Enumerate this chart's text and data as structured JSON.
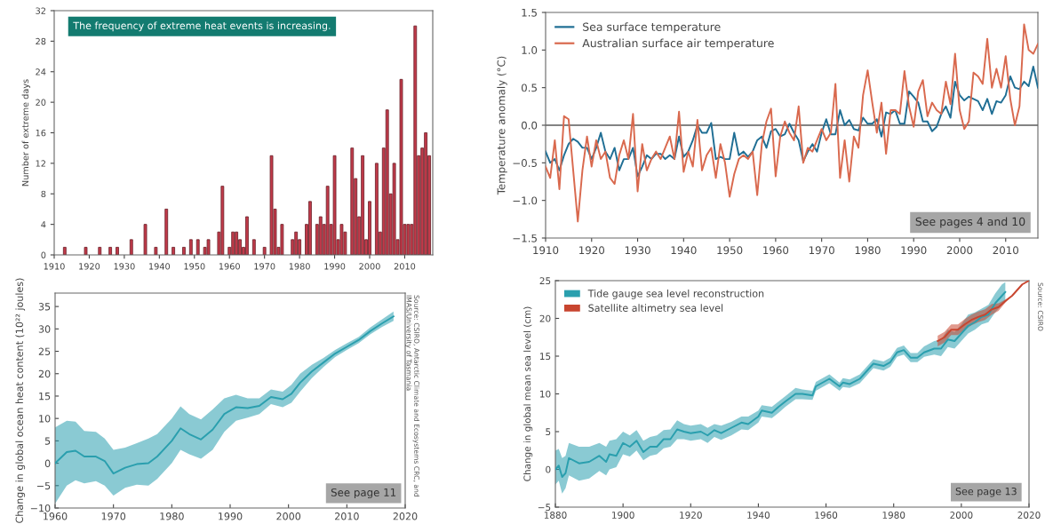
{
  "chart_data": [
    {
      "type": "bar",
      "ylabel": "Number of extreme days",
      "color": "#c23a4a",
      "x": [
        1913,
        1919,
        1923,
        1926,
        1928,
        1932,
        1936,
        1939,
        1942,
        1944,
        1947,
        1949,
        1951,
        1953,
        1954,
        1957,
        1958,
        1960,
        1961,
        1962,
        1963,
        1964,
        1965,
        1967,
        1970,
        1972,
        1973,
        1974,
        1975,
        1978,
        1979,
        1980,
        1982,
        1983,
        1985,
        1986,
        1987,
        1988,
        1989,
        1990,
        1991,
        1992,
        1993,
        1995,
        1996,
        1997,
        1998,
        1999,
        2000,
        2002,
        2003,
        2004,
        2005,
        2006,
        2007,
        2008,
        2009,
        2010,
        2011,
        2012,
        2013,
        2014,
        2015,
        2016,
        2017
      ],
      "values": [
        1,
        1,
        1,
        1,
        1,
        2,
        4,
        1,
        6,
        1,
        1,
        2,
        2,
        1,
        2,
        3,
        9,
        1,
        3,
        3,
        2,
        1,
        5,
        2,
        1,
        13,
        6,
        1,
        4,
        2,
        3,
        2,
        4,
        7,
        4,
        5,
        4,
        9,
        4,
        13,
        2,
        4,
        3,
        14,
        10,
        5,
        13,
        2,
        7,
        12,
        3,
        14,
        19,
        8,
        12,
        2,
        23,
        4,
        4,
        4,
        30,
        13,
        14,
        16,
        13
      ],
      "xlim": [
        1910,
        2018
      ],
      "xticks": [
        1910,
        1920,
        1930,
        1940,
        1950,
        1960,
        1970,
        1980,
        1990,
        2000,
        2010
      ],
      "ylim": [
        0,
        32
      ],
      "yticks": [
        0,
        4,
        8,
        12,
        16,
        20,
        24,
        28,
        32
      ],
      "annotations": [
        "The frequency of extreme heat events is increasing."
      ]
    },
    {
      "type": "line",
      "ylabel": "Temperature anomaly (°C)",
      "legend": "top left",
      "line_style": "solid",
      "x": [
        1910,
        1911,
        1912,
        1913,
        1914,
        1915,
        1916,
        1917,
        1918,
        1919,
        1920,
        1921,
        1922,
        1923,
        1924,
        1925,
        1926,
        1927,
        1928,
        1929,
        1930,
        1931,
        1932,
        1933,
        1934,
        1935,
        1936,
        1937,
        1938,
        1939,
        1940,
        1941,
        1942,
        1943,
        1944,
        1945,
        1946,
        1947,
        1948,
        1949,
        1950,
        1951,
        1952,
        1953,
        1954,
        1955,
        1956,
        1957,
        1958,
        1959,
        1960,
        1961,
        1962,
        1963,
        1964,
        1965,
        1966,
        1967,
        1968,
        1969,
        1970,
        1971,
        1972,
        1973,
        1974,
        1975,
        1976,
        1977,
        1978,
        1979,
        1980,
        1981,
        1982,
        1983,
        1984,
        1985,
        1986,
        1987,
        1988,
        1989,
        1990,
        1991,
        1992,
        1993,
        1994,
        1995,
        1996,
        1997,
        1998,
        1999,
        2000,
        2001,
        2002,
        2003,
        2004,
        2005,
        2006,
        2007,
        2008,
        2009,
        2010,
        2011,
        2012,
        2013,
        2014,
        2015,
        2016,
        2017
      ],
      "series": [
        {
          "name": "Sea surface temperature",
          "color": "#1f6e94",
          "values": [
            -0.35,
            -0.5,
            -0.45,
            -0.6,
            -0.4,
            -0.25,
            -0.18,
            -0.22,
            -0.3,
            -0.3,
            -0.45,
            -0.3,
            -0.1,
            -0.35,
            -0.45,
            -0.3,
            -0.6,
            -0.45,
            -0.45,
            -0.3,
            -0.68,
            -0.55,
            -0.4,
            -0.45,
            -0.38,
            -0.38,
            -0.45,
            -0.4,
            -0.45,
            -0.15,
            -0.42,
            -0.35,
            -0.2,
            0.0,
            -0.1,
            -0.1,
            0.03,
            -0.45,
            -0.42,
            -0.45,
            -0.45,
            -0.1,
            -0.4,
            -0.35,
            -0.42,
            -0.35,
            -0.2,
            -0.15,
            -0.3,
            -0.08,
            -0.05,
            -0.15,
            -0.12,
            0.02,
            -0.1,
            -0.2,
            -0.48,
            -0.35,
            -0.25,
            -0.35,
            -0.1,
            0.08,
            -0.12,
            -0.12,
            0.2,
            0.0,
            0.07,
            -0.05,
            -0.07,
            0.1,
            0.02,
            0.02,
            0.08,
            -0.15,
            0.17,
            0.15,
            0.2,
            0.02,
            0.02,
            0.45,
            0.38,
            0.3,
            0.05,
            0.05,
            -0.08,
            -0.02,
            0.15,
            0.25,
            0.1,
            0.58,
            0.4,
            0.33,
            0.38,
            0.35,
            0.32,
            0.2,
            0.35,
            0.15,
            0.32,
            0.3,
            0.4,
            0.65,
            0.5,
            0.48,
            0.58,
            0.52,
            0.78,
            0.5
          ]
        },
        {
          "name": "Australian surface air temperature",
          "color": "#d9694e",
          "values": [
            -0.55,
            -0.7,
            -0.2,
            -0.85,
            0.12,
            0.08,
            -0.6,
            -1.28,
            -0.6,
            -0.15,
            -0.55,
            -0.2,
            -0.45,
            -0.35,
            -0.7,
            -0.78,
            -0.4,
            -0.2,
            -0.45,
            0.15,
            -0.88,
            -0.25,
            -0.6,
            -0.45,
            -0.35,
            -0.45,
            -0.3,
            -0.15,
            -0.45,
            0.18,
            -0.62,
            -0.35,
            -0.55,
            0.07,
            -0.6,
            -0.4,
            -0.3,
            -0.7,
            -0.25,
            -0.5,
            -0.95,
            -0.65,
            -0.45,
            -0.4,
            -0.45,
            -0.35,
            -0.93,
            -0.25,
            0.05,
            0.22,
            -0.68,
            -0.15,
            0.05,
            -0.1,
            -0.2,
            0.25,
            -0.5,
            -0.3,
            -0.35,
            -0.2,
            -0.05,
            -0.2,
            -0.1,
            0.55,
            -0.7,
            -0.2,
            -0.75,
            -0.15,
            -0.3,
            0.4,
            0.73,
            0.3,
            -0.1,
            0.3,
            -0.38,
            0.2,
            0.2,
            0.15,
            0.72,
            0.25,
            -0.02,
            0.45,
            0.6,
            0.12,
            0.3,
            0.2,
            0.15,
            0.58,
            0.28,
            0.95,
            0.2,
            -0.05,
            0.05,
            0.7,
            0.65,
            0.55,
            1.15,
            0.5,
            0.75,
            0.5,
            0.92,
            0.35,
            0.0,
            0.25,
            1.34,
            1.0,
            0.95,
            1.08
          ]
        }
      ],
      "xlim": [
        1910,
        2017
      ],
      "xticks": [
        1910,
        1920,
        1930,
        1940,
        1950,
        1960,
        1970,
        1980,
        1990,
        2000,
        2010
      ],
      "ylim": [
        -1.5,
        1.5
      ],
      "yticks": [
        {
          "value": -1.5,
          "label": "−1.5"
        },
        {
          "value": -1.0,
          "label": "−1.0"
        },
        {
          "value": -0.5,
          "label": "−0.5"
        },
        {
          "value": 0.0,
          "label": "0.0"
        },
        {
          "value": 0.5,
          "label": "0.5"
        },
        {
          "value": 1.0,
          "label": "1.0"
        },
        {
          "value": 1.5,
          "label": "1.5"
        }
      ],
      "ref_lines": [
        {
          "axis": "y",
          "value": 0,
          "color": "#5a5a5a"
        }
      ],
      "annotations": [
        "See pages 4 and 10"
      ]
    },
    {
      "type": "line",
      "ylabel": "Change in global ocean heat content (10²² joules)",
      "line_style": "solid",
      "series": [
        {
          "color": "#2a9fae",
          "x": [
            1960,
            1962,
            1963.5,
            1965,
            1967,
            1968.5,
            1970,
            1972,
            1974,
            1976,
            1977.5,
            1980,
            1981.5,
            1983,
            1985,
            1987,
            1989,
            1991,
            1993,
            1995,
            1997,
            1999,
            2000.5,
            2002,
            2004,
            2006,
            2008,
            2010,
            2012,
            2014,
            2016,
            2018
          ],
          "values": [
            0,
            2.5,
            2.8,
            1.5,
            1.5,
            0.5,
            -2.3,
            -1,
            -0.2,
            0,
            1.5,
            5,
            7.8,
            6.5,
            5.3,
            7.5,
            11,
            12.5,
            12.3,
            12.8,
            14.8,
            14.3,
            15.5,
            18,
            20.5,
            22.5,
            24.5,
            26,
            27.5,
            29.5,
            31.2,
            32.8
          ],
          "lower": [
            -9,
            -5,
            -3.8,
            -4.5,
            -4,
            -5,
            -7.2,
            -5.5,
            -4.8,
            -5,
            -3.5,
            0,
            3,
            2,
            1,
            3,
            7,
            9.5,
            10.2,
            11,
            13.2,
            12.5,
            13.5,
            16,
            19,
            21.5,
            23.7,
            25.3,
            26.8,
            28.8,
            30.4,
            31.8
          ],
          "upper": [
            8,
            9.5,
            9.3,
            7.2,
            7,
            5.5,
            3,
            3.5,
            4.5,
            5.5,
            6.5,
            10,
            12.7,
            11,
            9.8,
            12,
            14.5,
            15.3,
            14.5,
            14.5,
            16.5,
            16,
            17.5,
            20,
            22,
            23.5,
            25.3,
            26.8,
            28.2,
            30.3,
            32.1,
            33.9
          ]
        }
      ],
      "xlim": [
        1960,
        2020
      ],
      "xticks": [
        1960,
        1970,
        1980,
        1990,
        2000,
        2010,
        2020
      ],
      "ylim": [
        -10,
        38
      ],
      "yticks": [
        -10,
        -5,
        0,
        5,
        10,
        15,
        20,
        25,
        30,
        35
      ],
      "annotations": [
        "See page 11",
        "Source: CSIRO, Antarctic Climate and Ecosystems CRC, and IMAS/University of Tasmania"
      ]
    },
    {
      "type": "line",
      "ylabel": "Change in global mean sea level (cm)",
      "legend": "top left",
      "line_style": "solid",
      "series": [
        {
          "name": "Tide gauge sea level reconstruction",
          "color": "#2a9fae",
          "x": [
            1880,
            1881,
            1882,
            1883,
            1884,
            1887,
            1890,
            1893,
            1895,
            1896,
            1898,
            1900,
            1902,
            1904,
            1906,
            1908,
            1910,
            1912,
            1914,
            1916,
            1918,
            1920,
            1923,
            1925,
            1927,
            1929,
            1932,
            1935,
            1937,
            1940,
            1941,
            1944,
            1946,
            1948,
            1951,
            1953,
            1956,
            1957,
            1961,
            1964,
            1965,
            1967,
            1970,
            1972,
            1974,
            1977,
            1979,
            1981,
            1983,
            1985,
            1987,
            1989,
            1992,
            1994,
            1996,
            1998,
            2000,
            2002,
            2004,
            2006,
            2008,
            2010,
            2012,
            2013
          ],
          "values": [
            0,
            0.5,
            -1,
            -0.5,
            1.5,
            0.8,
            1,
            1.8,
            1,
            2,
            1.8,
            3.5,
            3,
            3.8,
            2.3,
            3,
            3,
            4,
            4,
            5.3,
            5,
            4.8,
            5,
            4.5,
            5.2,
            4.8,
            5.5,
            6.2,
            6,
            7,
            7.8,
            7.5,
            8.3,
            9,
            10,
            10,
            9.8,
            11,
            12,
            11,
            11.5,
            11.3,
            12,
            13,
            14,
            13.7,
            14.2,
            15.5,
            15.8,
            14.8,
            14.8,
            15.5,
            16,
            16,
            17.2,
            17,
            18,
            19,
            19.5,
            20.2,
            20.5,
            22,
            23,
            23.5
          ],
          "lower": [
            -2,
            -1.5,
            -3.2,
            -2.5,
            -0.8,
            -1.5,
            -1.2,
            -0.2,
            -0.8,
            0,
            0.3,
            2,
            1.7,
            2.5,
            1.2,
            1.8,
            2,
            2.8,
            3,
            4,
            4,
            3.8,
            4,
            3.5,
            4.3,
            3.9,
            4.5,
            5.3,
            5.2,
            6.2,
            7,
            6.8,
            7.5,
            8.3,
            9.3,
            9.3,
            9.2,
            10.4,
            11.4,
            10.4,
            10.9,
            10.8,
            11.4,
            12.4,
            13.4,
            13.1,
            13.6,
            14.9,
            15.2,
            14.2,
            14.2,
            14.9,
            15.2,
            15,
            16.2,
            16,
            17,
            18,
            18.5,
            19.2,
            19.5,
            20.8,
            21.8,
            22.3
          ],
          "upper": [
            2.5,
            2.7,
            1.5,
            1.8,
            3.5,
            3,
            3,
            3.5,
            3,
            3.8,
            4,
            5,
            4.5,
            5.2,
            3.8,
            4.3,
            4.5,
            5.2,
            5.3,
            6.5,
            6,
            5.8,
            6,
            5.5,
            6,
            5.8,
            6.3,
            7,
            7,
            7.8,
            8.5,
            8.3,
            9,
            9.7,
            10.8,
            10.6,
            10.4,
            11.6,
            12.6,
            11.5,
            12.1,
            11.9,
            12.6,
            13.6,
            14.6,
            14.3,
            14.8,
            16.1,
            16.4,
            15.4,
            15.4,
            16.3,
            17,
            17.2,
            18.5,
            18.2,
            19.2,
            20.5,
            20.8,
            21.3,
            21.8,
            23.3,
            24.5,
            24.8
          ]
        },
        {
          "name": "Satellite altimetry sea level",
          "color": "#c8452f",
          "x": [
            1993,
            1995,
            1997,
            1999,
            2001,
            2003,
            2005,
            2007,
            2009,
            2011,
            2013,
            2015,
            2018,
            2020
          ],
          "values": [
            17,
            17.5,
            18.5,
            18.5,
            19.2,
            19.8,
            20.2,
            20.5,
            21.2,
            21.5,
            22.3,
            23,
            24.5,
            25
          ],
          "lower": [
            16.3,
            16.8,
            17.8,
            17.8,
            18.5,
            19.1,
            19.5,
            19.8,
            20.5,
            21,
            22.1,
            23,
            24.5,
            25
          ],
          "upper": [
            17.7,
            18.2,
            19.2,
            19.2,
            19.9,
            20.5,
            20.9,
            21.2,
            21.9,
            22,
            22.5,
            23,
            24.5,
            25
          ]
        }
      ],
      "xlim": [
        1880,
        2020
      ],
      "xticks": [
        1880,
        1900,
        1920,
        1940,
        1960,
        1980,
        2000,
        2020
      ],
      "ylim": [
        -5,
        25
      ],
      "yticks": [
        -5,
        0,
        5,
        10,
        15,
        20,
        25
      ],
      "annotations": [
        "See page 13",
        "Source: CSIRO"
      ]
    }
  ]
}
